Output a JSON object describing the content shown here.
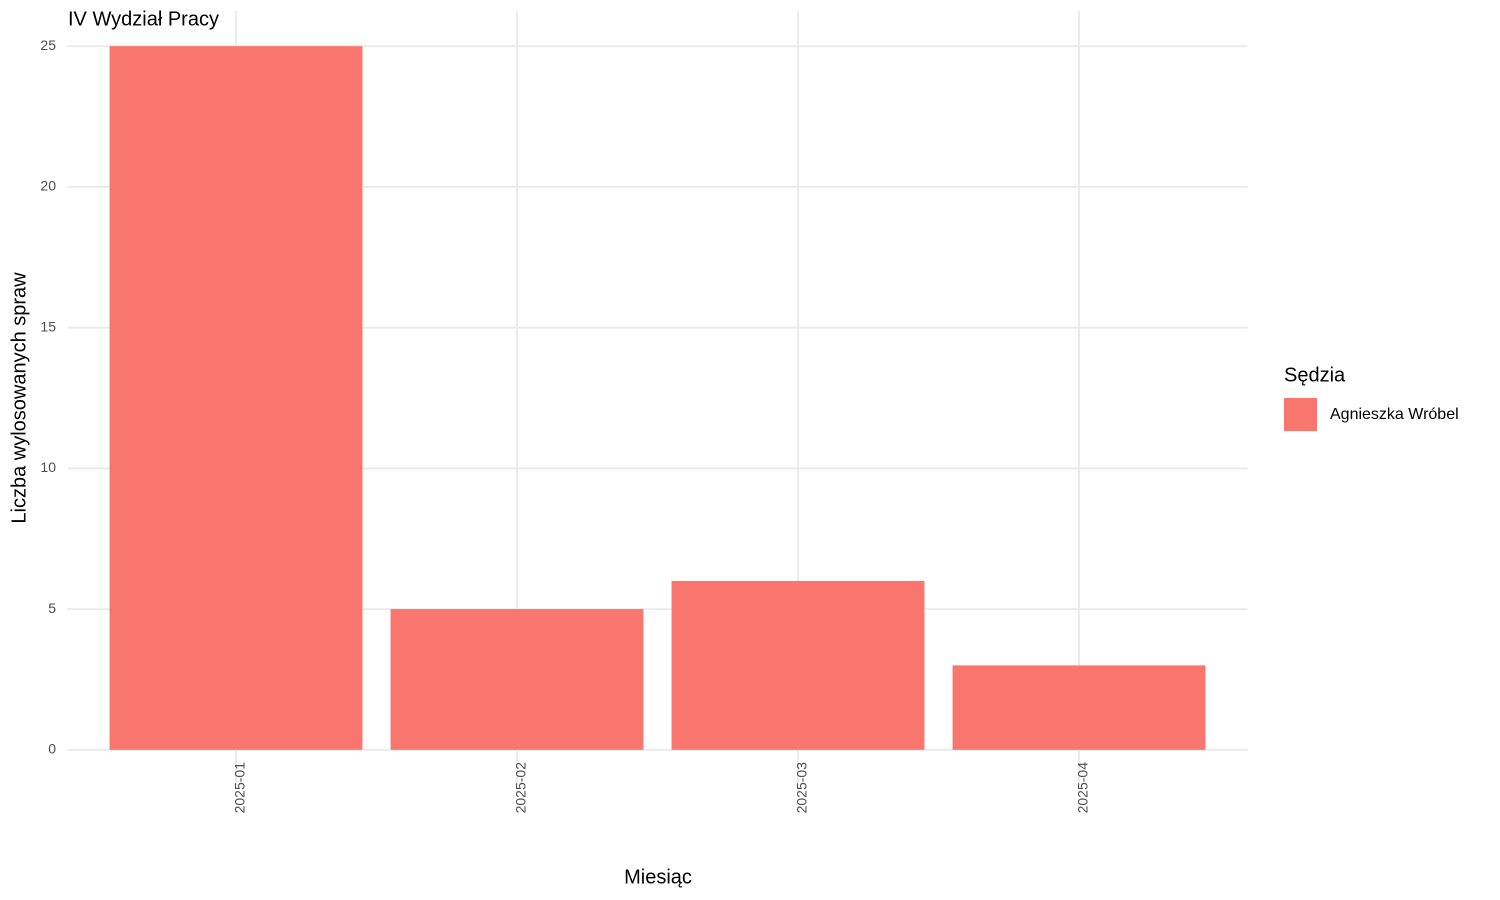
{
  "chart_data": {
    "type": "bar",
    "title": "IV Wydział Pracy",
    "x_label": "Miesiąc",
    "y_label": "Liczba wylosowanych spraw",
    "categories": [
      "2025-01",
      "2025-02",
      "2025-03",
      "2025-04"
    ],
    "series": [
      {
        "name": "Agnieszka Wróbel",
        "color": "#f8766d",
        "values": [
          25,
          5,
          6,
          3
        ]
      }
    ],
    "legend_title": "Sędzia",
    "legend": "right",
    "ylim": [
      -1.25,
      26.25
    ],
    "yticks": [
      0,
      5,
      10,
      15,
      20,
      25
    ],
    "grid": true
  }
}
